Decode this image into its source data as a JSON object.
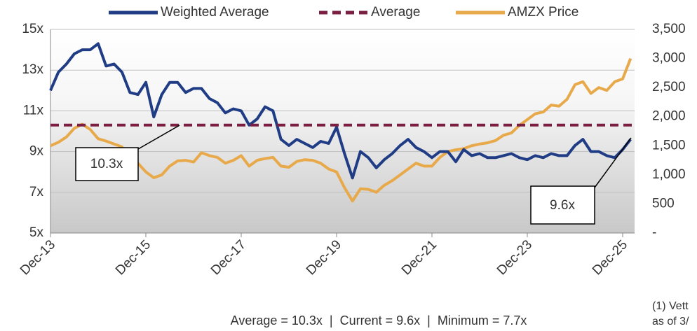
{
  "chart_data": {
    "type": "line",
    "x": [
      "2013-12",
      "2014-02",
      "2014-04",
      "2014-06",
      "2014-08",
      "2014-10",
      "2014-12",
      "2015-02",
      "2015-04",
      "2015-06",
      "2015-08",
      "2015-10",
      "2015-12",
      "2016-02",
      "2016-04",
      "2016-06",
      "2016-08",
      "2016-10",
      "2016-12",
      "2017-02",
      "2017-04",
      "2017-06",
      "2017-08",
      "2017-10",
      "2017-12",
      "2018-02",
      "2018-04",
      "2018-06",
      "2018-08",
      "2018-10",
      "2018-12",
      "2019-02",
      "2019-04",
      "2019-06",
      "2019-08",
      "2019-10",
      "2019-12",
      "2020-02",
      "2020-04",
      "2020-06",
      "2020-08",
      "2020-10",
      "2020-12",
      "2021-02",
      "2021-04",
      "2021-06",
      "2021-08",
      "2021-10",
      "2021-12",
      "2022-02",
      "2022-04",
      "2022-06",
      "2022-08",
      "2022-10",
      "2022-12",
      "2023-02",
      "2023-04",
      "2023-06",
      "2023-08",
      "2023-10",
      "2023-12",
      "2024-02",
      "2024-04",
      "2024-06",
      "2024-08",
      "2024-10",
      "2024-12",
      "2025-02",
      "2025-04",
      "2025-06",
      "2025-08",
      "2025-10",
      "2025-12",
      "2026-02"
    ],
    "series": [
      {
        "name": "Weighted Average",
        "color": "#1f3c85",
        "values": [
          12.0,
          12.9,
          13.3,
          13.8,
          14.0,
          14.0,
          14.3,
          13.2,
          13.3,
          12.9,
          11.9,
          11.8,
          12.4,
          10.7,
          11.8,
          12.4,
          12.4,
          11.9,
          12.1,
          12.1,
          11.6,
          11.4,
          10.9,
          11.1,
          11.0,
          10.3,
          10.6,
          11.2,
          11.0,
          9.6,
          9.3,
          9.6,
          9.4,
          9.2,
          9.5,
          9.4,
          10.2,
          8.9,
          7.7,
          9.0,
          8.7,
          8.2,
          8.6,
          8.9,
          9.3,
          9.6,
          9.2,
          9.0,
          8.7,
          9.0,
          9.0,
          8.5,
          9.1,
          8.8,
          8.9,
          8.7,
          8.7,
          8.8,
          8.9,
          8.7,
          8.6,
          8.8,
          8.7,
          8.9,
          8.8,
          8.8,
          9.3,
          9.6,
          9.0,
          9.0,
          8.8,
          8.7,
          9.1,
          9.6
        ]
      },
      {
        "name": "Average",
        "color": "#7b1f42",
        "dashed": true,
        "value": 10.3
      },
      {
        "name": "AMZX Price",
        "color": "#e8a94a",
        "axis": "y2",
        "values": [
          1500,
          1560,
          1650,
          1800,
          1870,
          1780,
          1620,
          1580,
          1530,
          1480,
          1300,
          1200,
          1050,
          950,
          1000,
          1150,
          1240,
          1250,
          1220,
          1380,
          1330,
          1300,
          1200,
          1250,
          1330,
          1150,
          1250,
          1280,
          1300,
          1150,
          1130,
          1230,
          1260,
          1250,
          1200,
          1100,
          1050,
          780,
          550,
          760,
          750,
          700,
          820,
          900,
          1000,
          1100,
          1200,
          1150,
          1150,
          1300,
          1400,
          1430,
          1450,
          1500,
          1530,
          1550,
          1590,
          1680,
          1720,
          1850,
          1950,
          2050,
          2080,
          2200,
          2180,
          2300,
          2550,
          2600,
          2400,
          2500,
          2450,
          2600,
          2650,
          3000
        ]
      }
    ],
    "xticks": [
      {
        "value": "2013-12",
        "label": "Dec-13"
      },
      {
        "value": "2015-12",
        "label": "Dec-15"
      },
      {
        "value": "2017-12",
        "label": "Dec-17"
      },
      {
        "value": "2019-12",
        "label": "Dec-19"
      },
      {
        "value": "2021-12",
        "label": "Dec-21"
      },
      {
        "value": "2023-12",
        "label": "Dec-23"
      },
      {
        "value": "2025-12",
        "label": "Dec-25"
      }
    ],
    "ylim": [
      5,
      15
    ],
    "yticks": [
      {
        "value": 5,
        "label": "5x"
      },
      {
        "value": 7,
        "label": "7x"
      },
      {
        "value": 9,
        "label": "9x"
      },
      {
        "value": 11,
        "label": "11x"
      },
      {
        "value": 13,
        "label": "13x"
      },
      {
        "value": 15,
        "label": "15x"
      }
    ],
    "y2lim": [
      0,
      3500
    ],
    "y2ticks": [
      {
        "value": 0,
        "label": "-"
      },
      500,
      {
        "value": 1000,
        "label": "1,000"
      },
      {
        "value": 1500,
        "label": "1,500"
      },
      {
        "value": 2000,
        "label": "2,000"
      },
      {
        "value": 2500,
        "label": "2,500"
      },
      {
        "value": 3000,
        "label": "3,000"
      },
      {
        "value": 3500,
        "label": "3,500"
      }
    ],
    "grid": true,
    "legend": "top",
    "annotations": [
      "10.3x",
      "9.6x"
    ],
    "footer": "Average = 10.3x  |  Current = 9.6x  |  Minimum = 7.7x",
    "footnote": [
      "(1) Vett",
      "as of 3/"
    ]
  }
}
